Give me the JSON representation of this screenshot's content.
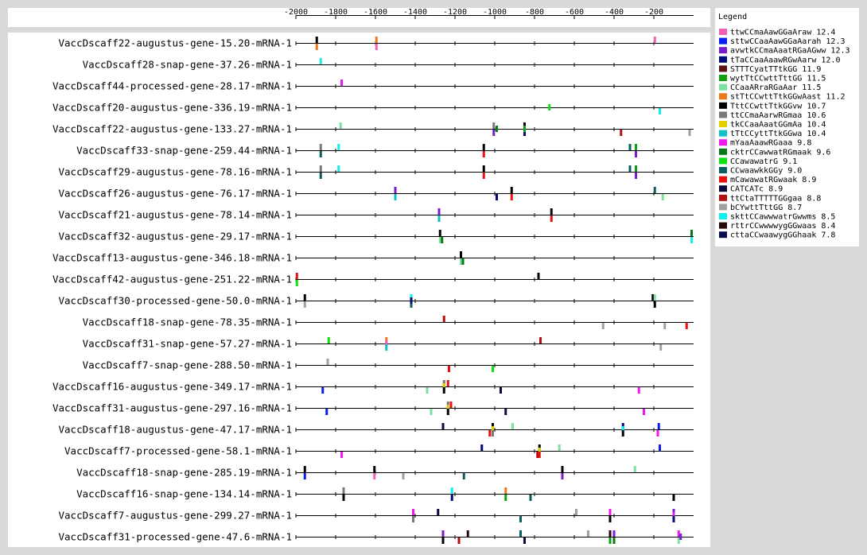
{
  "chart_data": {
    "type": "motif-position-map",
    "x_ticks": [
      -2000,
      -1800,
      -1600,
      -1400,
      -1200,
      -1000,
      -800,
      -600,
      -400,
      -200
    ],
    "xlim": [
      -2000,
      0
    ],
    "legend_title": "Legend",
    "motifs": [
      {
        "id": "m1",
        "label": "ttwCCmaAawGGaAraw 12.4",
        "color": "#f060b8"
      },
      {
        "id": "m2",
        "label": "sttwCCaaAawGGaAarah 12.3",
        "color": "#0a1ef0"
      },
      {
        "id": "m3",
        "label": "avwtkCCmaAaatRGaAGww 12.3",
        "color": "#7a1bd0"
      },
      {
        "id": "m4",
        "label": "tTaCCaaAaawRGwAarw 12.0",
        "color": "#000a78"
      },
      {
        "id": "m5",
        "label": "STTTCyatTTtkGG 11.9",
        "color": "#5a1414"
      },
      {
        "id": "m6",
        "label": "wytTtCCwttTttGG 11.5",
        "color": "#12a012"
      },
      {
        "id": "m7",
        "label": "CCaaARraRGaAar 11.5",
        "color": "#7ee0a0"
      },
      {
        "id": "m8",
        "label": "stTtCCwttTtkGGwAast 11.2",
        "color": "#f07818"
      },
      {
        "id": "m9",
        "label": "TttCCwttTtkGGvw 10.7",
        "color": "#000000"
      },
      {
        "id": "m10",
        "label": "ttCCmaAarwRGmaa 10.6",
        "color": "#787878"
      },
      {
        "id": "m11",
        "label": "tkCCaaAaatGGmAa 10.4",
        "color": "#e0d000"
      },
      {
        "id": "m12",
        "label": "tTtCCyttTtkGGwa 10.4",
        "color": "#10c0c8"
      },
      {
        "id": "m13",
        "label": "mYaaAaawRGaaa 9.8",
        "color": "#f018f0"
      },
      {
        "id": "m14",
        "label": "cktrCCawwatRGmaak 9.6",
        "color": "#087818"
      },
      {
        "id": "m15",
        "label": "CCawawatrG 9.1",
        "color": "#10e010"
      },
      {
        "id": "m16",
        "label": "CCwaawkkGGy 9.0",
        "color": "#086060"
      },
      {
        "id": "m17",
        "label": "mCawawatRGwaak 8.9",
        "color": "#e81010"
      },
      {
        "id": "m18",
        "label": "CATCATc 8.9",
        "color": "#0a0a3c"
      },
      {
        "id": "m19",
        "label": "ttCtaTTTTTGGgaa 8.8",
        "color": "#b01010"
      },
      {
        "id": "m20",
        "label": "bCYwttTttGG 8.7",
        "color": "#a0a0a0"
      },
      {
        "id": "m21",
        "label": "skttCCawwwatrGwwms 8.5",
        "color": "#10f0f0"
      },
      {
        "id": "m22",
        "label": "rttrCCwwwwygGGwaas 8.4",
        "color": "#280a0a"
      },
      {
        "id": "m23",
        "label": "cttaCCwaawygGGhaak 7.8",
        "color": "#0a0a50"
      }
    ],
    "genes": [
      {
        "name": "VaccDscaff22-augustus-gene-15.20-mRNA-1",
        "sites": [
          {
            "m": "m9",
            "pos": -1895,
            "s": 1
          },
          {
            "m": "m8",
            "pos": -1895,
            "s": -1
          },
          {
            "m": "m8",
            "pos": -1595,
            "s": 1
          },
          {
            "m": "m1",
            "pos": -1595,
            "s": -1
          },
          {
            "m": "m1",
            "pos": -195,
            "s": 1
          }
        ]
      },
      {
        "name": "VaccDscaff28-snap-gene-37.26-mRNA-1",
        "sites": [
          {
            "m": "m21",
            "pos": -1875,
            "s": 1
          }
        ]
      },
      {
        "name": "VaccDscaff44-processed-gene-28.17-mRNA-1",
        "sites": [
          {
            "m": "m13",
            "pos": -1770,
            "s": 1
          }
        ]
      },
      {
        "name": "VaccDscaff20-augustus-gene-336.19-mRNA-1",
        "sites": [
          {
            "m": "m15",
            "pos": -725,
            "s": 0
          },
          {
            "m": "m21",
            "pos": -170,
            "s": -1
          }
        ]
      },
      {
        "name": "VaccDscaff22-augustus-gene-133.27-mRNA-1",
        "sites": [
          {
            "m": "m7",
            "pos": -1775,
            "s": 1
          },
          {
            "m": "m10",
            "pos": -1005,
            "s": 1
          },
          {
            "m": "m3",
            "pos": -1005,
            "s": -1
          },
          {
            "m": "m14",
            "pos": -990,
            "s": 0
          },
          {
            "m": "m9",
            "pos": -850,
            "s": 1
          },
          {
            "m": "m4",
            "pos": -850,
            "s": -1
          },
          {
            "m": "m6",
            "pos": -850,
            "s": 0
          },
          {
            "m": "m19",
            "pos": -365,
            "s": -1
          },
          {
            "m": "m20",
            "pos": -20,
            "s": -1
          }
        ]
      },
      {
        "name": "VaccDscaff33-snap-gene-259.44-mRNA-1",
        "sites": [
          {
            "m": "m10",
            "pos": -1875,
            "s": 1
          },
          {
            "m": "m16",
            "pos": -1875,
            "s": -1
          },
          {
            "m": "m21",
            "pos": -1785,
            "s": 1
          },
          {
            "m": "m9",
            "pos": -1055,
            "s": 1
          },
          {
            "m": "m17",
            "pos": -1055,
            "s": -1
          },
          {
            "m": "m16",
            "pos": -320,
            "s": 1
          },
          {
            "m": "m6",
            "pos": -290,
            "s": 1
          },
          {
            "m": "m3",
            "pos": -290,
            "s": -1
          }
        ]
      },
      {
        "name": "VaccDscaff29-augustus-gene-78.16-mRNA-1",
        "sites": [
          {
            "m": "m10",
            "pos": -1875,
            "s": 1
          },
          {
            "m": "m16",
            "pos": -1875,
            "s": -1
          },
          {
            "m": "m21",
            "pos": -1785,
            "s": 1
          },
          {
            "m": "m9",
            "pos": -1055,
            "s": 1
          },
          {
            "m": "m17",
            "pos": -1055,
            "s": -1
          },
          {
            "m": "m16",
            "pos": -320,
            "s": 1
          },
          {
            "m": "m6",
            "pos": -290,
            "s": 1
          },
          {
            "m": "m3",
            "pos": -290,
            "s": -1
          }
        ]
      },
      {
        "name": "VaccDscaff26-augustus-gene-76.17-mRNA-1",
        "sites": [
          {
            "m": "m3",
            "pos": -1500,
            "s": 1
          },
          {
            "m": "m12",
            "pos": -1500,
            "s": -1
          },
          {
            "m": "m4",
            "pos": -990,
            "s": -1
          },
          {
            "m": "m9",
            "pos": -915,
            "s": 1
          },
          {
            "m": "m17",
            "pos": -915,
            "s": -1
          },
          {
            "m": "m16",
            "pos": -195,
            "s": 1
          },
          {
            "m": "m7",
            "pos": -155,
            "s": -1
          }
        ]
      },
      {
        "name": "VaccDscaff21-augustus-gene-78.14-mRNA-1",
        "sites": [
          {
            "m": "m3",
            "pos": -1280,
            "s": 1
          },
          {
            "m": "m12",
            "pos": -1280,
            "s": -1
          },
          {
            "m": "m9",
            "pos": -715,
            "s": 1
          },
          {
            "m": "m17",
            "pos": -715,
            "s": -1
          }
        ]
      },
      {
        "name": "VaccDscaff32-augustus-gene-29.17-mRNA-1",
        "sites": [
          {
            "m": "m9",
            "pos": -1275,
            "s": 1
          },
          {
            "m": "m7",
            "pos": -1275,
            "s": -1
          },
          {
            "m": "m14",
            "pos": -1265,
            "s": -1
          },
          {
            "m": "m14",
            "pos": -10,
            "s": 1
          },
          {
            "m": "m21",
            "pos": -10,
            "s": -1
          }
        ]
      },
      {
        "name": "VaccDscaff13-augustus-gene-346.18-mRNA-1",
        "sites": [
          {
            "m": "m9",
            "pos": -1170,
            "s": 1
          },
          {
            "m": "m7",
            "pos": -1170,
            "s": -1
          },
          {
            "m": "m14",
            "pos": -1160,
            "s": -1
          }
        ]
      },
      {
        "name": "VaccDscaff42-augustus-gene-251.22-mRNA-1",
        "sites": [
          {
            "m": "m17",
            "pos": -1995,
            "s": 1
          },
          {
            "m": "m15",
            "pos": -1995,
            "s": -1
          },
          {
            "m": "m9",
            "pos": -780,
            "s": 1
          }
        ]
      },
      {
        "name": "VaccDscaff30-processed-gene-50.0-mRNA-1",
        "sites": [
          {
            "m": "m9",
            "pos": -1955,
            "s": 1
          },
          {
            "m": "m20",
            "pos": -1955,
            "s": -1
          },
          {
            "m": "m21",
            "pos": -1420,
            "s": 1
          },
          {
            "m": "m16",
            "pos": -1420,
            "s": -1
          },
          {
            "m": "m4",
            "pos": -1420,
            "s": 0
          },
          {
            "m": "m9",
            "pos": -205,
            "s": 1
          },
          {
            "m": "m7",
            "pos": -195,
            "s": 1
          },
          {
            "m": "m9",
            "pos": -195,
            "s": -1
          }
        ]
      },
      {
        "name": "VaccDscaff18-snap-gene-78.35-mRNA-1",
        "sites": [
          {
            "m": "m19",
            "pos": -1255,
            "s": 1
          },
          {
            "m": "m20",
            "pos": -455,
            "s": -1
          },
          {
            "m": "m20",
            "pos": -145,
            "s": -1
          },
          {
            "m": "m17",
            "pos": -35,
            "s": -1
          }
        ]
      },
      {
        "name": "VaccDscaff31-snap-gene-57.27-mRNA-1",
        "sites": [
          {
            "m": "m15",
            "pos": -1835,
            "s": 1
          },
          {
            "m": "m8",
            "pos": -1545,
            "s": 1
          },
          {
            "m": "m1",
            "pos": -1545,
            "s": 0
          },
          {
            "m": "m12",
            "pos": -1545,
            "s": -1
          },
          {
            "m": "m19",
            "pos": -770,
            "s": 1
          },
          {
            "m": "m20",
            "pos": -165,
            "s": -1
          }
        ]
      },
      {
        "name": "VaccDscaff7-snap-gene-288.50-mRNA-1",
        "sites": [
          {
            "m": "m20",
            "pos": -1840,
            "s": 1
          },
          {
            "m": "m17",
            "pos": -1230,
            "s": -1
          },
          {
            "m": "m15",
            "pos": -1010,
            "s": -1
          }
        ]
      },
      {
        "name": "VaccDscaff16-augustus-gene-349.17-mRNA-1",
        "sites": [
          {
            "m": "m2",
            "pos": -1865,
            "s": -1
          },
          {
            "m": "m7",
            "pos": -1340,
            "s": -1
          },
          {
            "m": "m10",
            "pos": -1255,
            "s": 1
          },
          {
            "m": "m11",
            "pos": -1255,
            "s": 0
          },
          {
            "m": "m9",
            "pos": -1255,
            "s": -1
          },
          {
            "m": "m17",
            "pos": -1235,
            "s": 1
          },
          {
            "m": "m18",
            "pos": -970,
            "s": -1
          },
          {
            "m": "m13",
            "pos": -275,
            "s": -1
          }
        ]
      },
      {
        "name": "VaccDscaff31-augustus-gene-297.16-mRNA-1",
        "sites": [
          {
            "m": "m2",
            "pos": -1845,
            "s": -1
          },
          {
            "m": "m7",
            "pos": -1320,
            "s": -1
          },
          {
            "m": "m10",
            "pos": -1235,
            "s": 1
          },
          {
            "m": "m11",
            "pos": -1235,
            "s": 0
          },
          {
            "m": "m9",
            "pos": -1235,
            "s": -1
          },
          {
            "m": "m17",
            "pos": -1220,
            "s": 1
          },
          {
            "m": "m18",
            "pos": -945,
            "s": -1
          },
          {
            "m": "m13",
            "pos": -250,
            "s": -1
          }
        ]
      },
      {
        "name": "VaccDscaff18-augustus-gene-47.17-mRNA-1",
        "sites": [
          {
            "m": "m18",
            "pos": -1260,
            "s": 1
          },
          {
            "m": "m17",
            "pos": -1025,
            "s": -1
          },
          {
            "m": "m9",
            "pos": -1010,
            "s": 1
          },
          {
            "m": "m11",
            "pos": -1010,
            "s": 0
          },
          {
            "m": "m10",
            "pos": -1010,
            "s": -1
          },
          {
            "m": "m7",
            "pos": -910,
            "s": 1
          },
          {
            "m": "m4",
            "pos": -355,
            "s": 1
          },
          {
            "m": "m21",
            "pos": -355,
            "s": 0
          },
          {
            "m": "m9",
            "pos": -355,
            "s": -1
          },
          {
            "m": "m2",
            "pos": -175,
            "s": 1
          },
          {
            "m": "m13",
            "pos": -180,
            "s": -1
          }
        ]
      },
      {
        "name": "VaccDscaff7-processed-gene-58.1-mRNA-1",
        "sites": [
          {
            "m": "m13",
            "pos": -1770,
            "s": -1
          },
          {
            "m": "m4",
            "pos": -1065,
            "s": 1
          },
          {
            "m": "m19",
            "pos": -785,
            "s": -1
          },
          {
            "m": "m9",
            "pos": -775,
            "s": 1
          },
          {
            "m": "m11",
            "pos": -775,
            "s": 0
          },
          {
            "m": "m17",
            "pos": -775,
            "s": -1
          },
          {
            "m": "m7",
            "pos": -675,
            "s": 1
          },
          {
            "m": "m2",
            "pos": -170,
            "s": 1
          }
        ]
      },
      {
        "name": "VaccDscaff18-snap-gene-285.19-mRNA-1",
        "sites": [
          {
            "m": "m9",
            "pos": -1955,
            "s": 1
          },
          {
            "m": "m2",
            "pos": -1955,
            "s": -1
          },
          {
            "m": "m9",
            "pos": -1605,
            "s": 1
          },
          {
            "m": "m1",
            "pos": -1605,
            "s": -1
          },
          {
            "m": "m20",
            "pos": -1460,
            "s": -1
          },
          {
            "m": "m16",
            "pos": -1155,
            "s": -1
          },
          {
            "m": "m9",
            "pos": -660,
            "s": 1
          },
          {
            "m": "m3",
            "pos": -660,
            "s": -1
          },
          {
            "m": "m7",
            "pos": -295,
            "s": 1
          }
        ]
      },
      {
        "name": "VaccDscaff16-snap-gene-134.14-mRNA-1",
        "sites": [
          {
            "m": "m10",
            "pos": -1760,
            "s": 1
          },
          {
            "m": "m9",
            "pos": -1760,
            "s": -1
          },
          {
            "m": "m21",
            "pos": -1215,
            "s": 1
          },
          {
            "m": "m4",
            "pos": -1215,
            "s": -1
          },
          {
            "m": "m8",
            "pos": -945,
            "s": 1
          },
          {
            "m": "m6",
            "pos": -945,
            "s": -1
          },
          {
            "m": "m16",
            "pos": -820,
            "s": -1
          },
          {
            "m": "m9",
            "pos": -100,
            "s": -1
          }
        ]
      },
      {
        "name": "VaccDscaff7-augustus-gene-299.27-mRNA-1",
        "sites": [
          {
            "m": "m13",
            "pos": -1410,
            "s": 1
          },
          {
            "m": "m10",
            "pos": -1410,
            "s": -1
          },
          {
            "m": "m18",
            "pos": -1285,
            "s": 1
          },
          {
            "m": "m16",
            "pos": -870,
            "s": -1
          },
          {
            "m": "m20",
            "pos": -590,
            "s": 1
          },
          {
            "m": "m13",
            "pos": -420,
            "s": 1
          },
          {
            "m": "m9",
            "pos": -420,
            "s": -1
          },
          {
            "m": "m3",
            "pos": -100,
            "s": 1
          },
          {
            "m": "m13",
            "pos": -100,
            "s": 0
          },
          {
            "m": "m4",
            "pos": -100,
            "s": -1
          }
        ]
      },
      {
        "name": "VaccDscaff31-processed-gene-47.6-mRNA-1",
        "sites": [
          {
            "m": "m3",
            "pos": -1260,
            "s": 1
          },
          {
            "m": "m9",
            "pos": -1260,
            "s": -1
          },
          {
            "m": "m22",
            "pos": -1135,
            "s": 1
          },
          {
            "m": "m19",
            "pos": -1180,
            "s": -1
          },
          {
            "m": "m16",
            "pos": -870,
            "s": 1
          },
          {
            "m": "m18",
            "pos": -850,
            "s": -1
          },
          {
            "m": "m20",
            "pos": -530,
            "s": 1
          },
          {
            "m": "m22",
            "pos": -420,
            "s": 1
          },
          {
            "m": "m6",
            "pos": -420,
            "s": -1
          },
          {
            "m": "m3",
            "pos": -400,
            "s": 1
          },
          {
            "m": "m14",
            "pos": -400,
            "s": -1
          },
          {
            "m": "m13",
            "pos": -75,
            "s": 1
          },
          {
            "m": "m7",
            "pos": -75,
            "s": -1
          },
          {
            "m": "m3",
            "pos": -65,
            "s": 0
          }
        ]
      }
    ]
  }
}
